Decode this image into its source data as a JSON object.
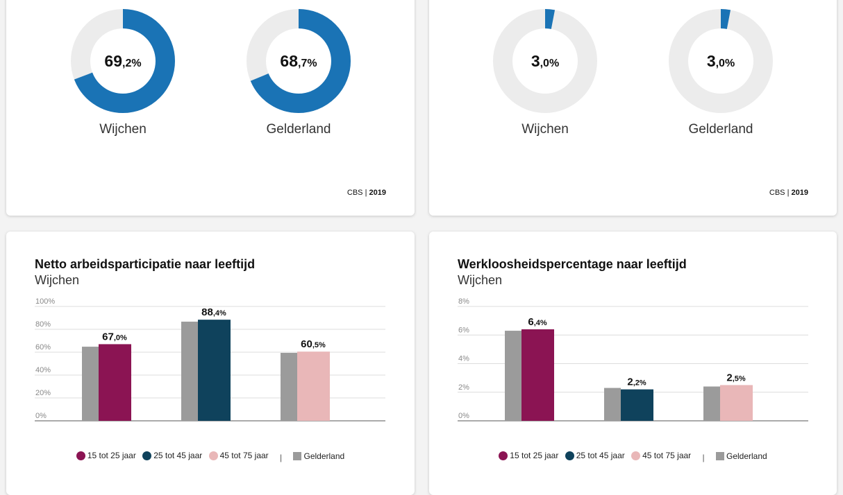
{
  "colors": {
    "donut": "#1a73b5",
    "donut_bg": "#ececec",
    "age1": "#8b1453",
    "age2": "#0f425c",
    "age3": "#e9b7b8",
    "region": "#9b9b9b",
    "grid": "#dcdcdc",
    "axis": "#555555"
  },
  "top_cards": [
    {
      "donuts": [
        {
          "label": "Wijchen",
          "value": 69.2,
          "value_int": "69",
          "value_dec": ",2%"
        },
        {
          "label": "Gelderland",
          "value": 68.7,
          "value_int": "68",
          "value_dec": ",7%"
        }
      ],
      "source": "CBS",
      "year": "2019"
    },
    {
      "donuts": [
        {
          "label": "Wijchen",
          "value": 3.0,
          "value_int": "3",
          "value_dec": ",0%"
        },
        {
          "label": "Gelderland",
          "value": 3.0,
          "value_int": "3",
          "value_dec": ",0%"
        }
      ],
      "source": "CBS",
      "year": "2019"
    }
  ],
  "legend": {
    "items": [
      "15 tot 25 jaar",
      "25 tot 45 jaar",
      "45 tot 75 jaar"
    ],
    "separator": "|",
    "region": "Gelderland"
  },
  "chart_data": [
    {
      "type": "bar",
      "title": "Netto arbeidsparticipatie naar leeftijd",
      "subtitle": "Wijchen",
      "categories": [
        "15 tot 25 jaar",
        "25 tot 45 jaar",
        "45 tot 75 jaar"
      ],
      "ylim": [
        0,
        100
      ],
      "ticks": [
        "0%",
        "20%",
        "40%",
        "60%",
        "80%",
        "100%"
      ],
      "tick_values": [
        0,
        20,
        40,
        60,
        80,
        100
      ],
      "series": [
        {
          "name": "Gelderland",
          "values": [
            64.8,
            86.7,
            59.4
          ]
        },
        {
          "name": "Wijchen",
          "values": [
            67.0,
            88.4,
            60.5
          ]
        }
      ],
      "labels": [
        {
          "i": "67",
          "d": ",0%"
        },
        {
          "i": "88",
          "d": ",4%"
        },
        {
          "i": "60",
          "d": ",5%"
        }
      ]
    },
    {
      "type": "bar",
      "title": "Werkloosheidspercentage naar leeftijd",
      "subtitle": "Wijchen",
      "categories": [
        "15 tot 25 jaar",
        "25 tot 45 jaar",
        "45 tot 75 jaar"
      ],
      "ylim": [
        0,
        8
      ],
      "ticks": [
        "0%",
        "2%",
        "4%",
        "6%",
        "8%"
      ],
      "tick_values": [
        0,
        2,
        4,
        6,
        8
      ],
      "series": [
        {
          "name": "Gelderland",
          "values": [
            6.3,
            2.3,
            2.4
          ]
        },
        {
          "name": "Wijchen",
          "values": [
            6.4,
            2.2,
            2.5
          ]
        }
      ],
      "labels": [
        {
          "i": "6",
          "d": ",4%"
        },
        {
          "i": "2",
          "d": ",2%"
        },
        {
          "i": "2",
          "d": ",5%"
        }
      ]
    }
  ]
}
